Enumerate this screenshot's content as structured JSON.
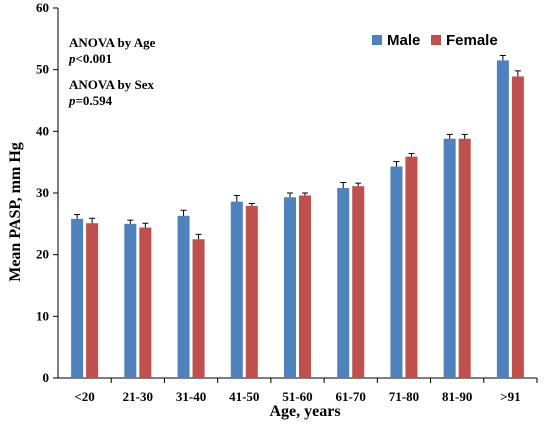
{
  "chart_data": {
    "type": "bar",
    "title": "",
    "xlabel": "Age, years",
    "ylabel": "Mean PASP, mm Hg",
    "ylim": [
      0,
      60
    ],
    "yticks": [
      "0",
      "10",
      "20",
      "30",
      "40",
      "50",
      "60"
    ],
    "grid": false,
    "legend_position": "top-right",
    "categories": [
      "<20",
      "21-30",
      "31-40",
      "41-50",
      "51-60",
      "61-70",
      "71-80",
      "81-90",
      ">91"
    ],
    "series": [
      {
        "name": "Male",
        "color": "#4f81bd",
        "values": [
          25.8,
          25.0,
          26.3,
          28.6,
          29.3,
          30.8,
          34.3,
          38.8,
          51.5
        ],
        "error": [
          0.7,
          0.6,
          0.9,
          1.0,
          0.7,
          0.9,
          0.8,
          0.7,
          0.8
        ]
      },
      {
        "name": "Female",
        "color": "#c0504d",
        "values": [
          25.1,
          24.4,
          22.5,
          27.9,
          29.6,
          31.1,
          35.9,
          38.8,
          48.9
        ],
        "error": [
          0.8,
          0.7,
          0.8,
          0.4,
          0.4,
          0.5,
          0.5,
          0.7,
          0.9
        ]
      }
    ],
    "annotations": {
      "age_label": "ANOVA by Age",
      "age_p_symbol": "p",
      "age_p_value": "<0.001",
      "sex_label": "ANOVA by Sex",
      "sex_p_symbol": "p",
      "sex_p_value": "=0.594"
    }
  }
}
